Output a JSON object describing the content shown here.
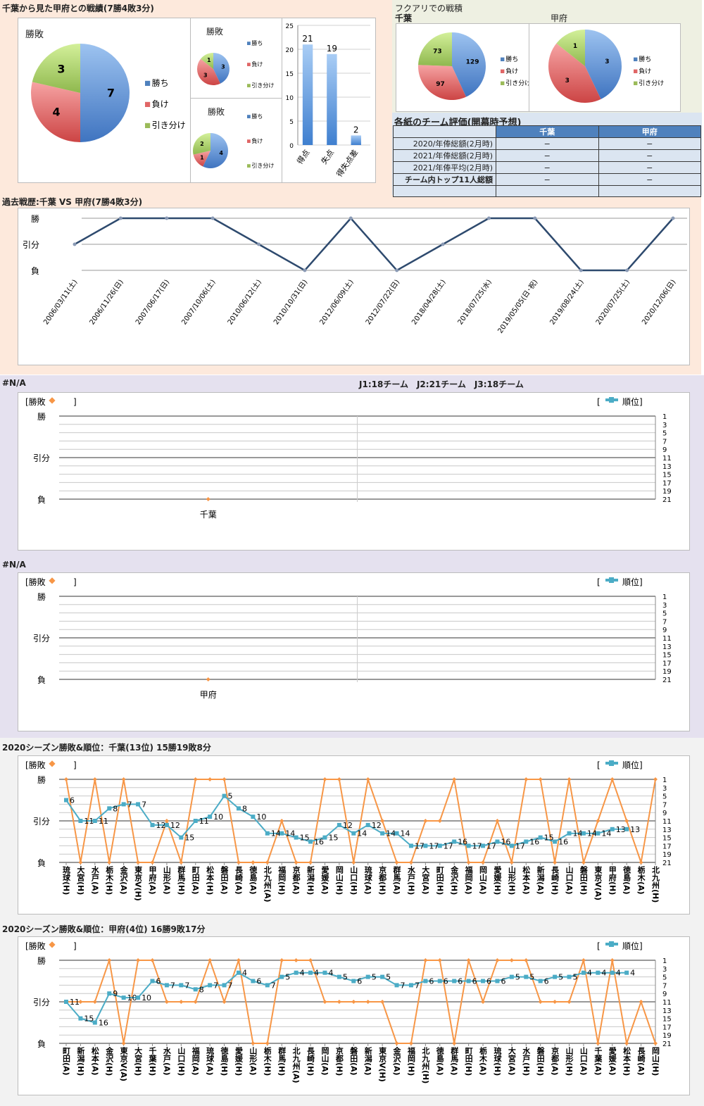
{
  "colors": {
    "win": "#4f81bd",
    "loss": "#e06666",
    "draw": "#9bbb59",
    "result_line": "#f79646",
    "rank_line": "#4bacc6",
    "history_line": "#2e4a6e"
  },
  "top": {
    "title": "千葉から見た甲府との戦績(7勝4敗3分)",
    "legend": {
      "win": "勝ち",
      "loss": "負け",
      "draw": "引き分け"
    },
    "main_pie": {
      "title": "勝敗",
      "values": [
        7,
        4,
        3
      ]
    },
    "pie_a": {
      "title": "勝敗",
      "values": [
        3,
        3,
        1
      ]
    },
    "pie_b": {
      "title": "勝敗",
      "values": [
        4,
        1,
        2
      ]
    },
    "bars": {
      "categories": [
        "得点",
        "失点",
        "得失点差"
      ],
      "values": [
        21,
        19,
        2
      ],
      "yticks": [
        "0",
        "5",
        "10",
        "15",
        "20",
        "25"
      ]
    }
  },
  "fukuari": {
    "title": "フクアリでの戦積",
    "chiba": {
      "label": "千葉",
      "values": [
        129,
        97,
        73
      ]
    },
    "kofu": {
      "label": "甲府",
      "values": [
        3,
        3,
        1
      ]
    },
    "legend": {
      "win": "勝ち",
      "loss": "負け",
      "draw": "引き分け"
    }
  },
  "eval_table": {
    "title": "各紙のチーム評価(開幕時予想)",
    "headers": [
      "千葉",
      "甲府"
    ],
    "rows": [
      {
        "label": "2020/年俸総額(2月時)",
        "chiba": "−",
        "kofu": "−"
      },
      {
        "label": "2021/年俸総額(2月時)",
        "chiba": "−",
        "kofu": "−"
      },
      {
        "label": "2021/年俸平均(2月時)",
        "chiba": "−",
        "kofu": "−"
      },
      {
        "label": "チーム内トップ11人総額",
        "chiba": "−",
        "kofu": "−"
      },
      {
        "label": "",
        "chiba": "",
        "kofu": ""
      }
    ]
  },
  "history": {
    "title": "過去戦歴:千葉 VS 甲府(7勝4敗3分)",
    "yticks": [
      "勝",
      "引分",
      "負"
    ],
    "chart_data": {
      "type": "line",
      "x": [
        "2006/03/11(土)",
        "2006/11/26(日)",
        "2007/06/17(日)",
        "2007/10/06(土)",
        "2010/06/12(土)",
        "2010/10/31(日)",
        "2012/06/09(土)",
        "2012/07/22(日)",
        "2018/04/28(土)",
        "2018/07/25(水)",
        "2019/05/05(日･祝)",
        "2019/08/24(土)",
        "2020/07/25(土)",
        "2020/12/06(日)"
      ],
      "values": [
        0.5,
        1,
        1,
        1,
        0.5,
        0,
        1,
        0,
        0.5,
        1,
        1,
        0,
        0,
        1
      ]
    }
  },
  "league_info": "J1:18チーム　J2:21チーム　J3:18チーム",
  "combo_legend": {
    "result": "[勝敗",
    "result_close": "]",
    "rank_open": "[",
    "rank": "順位]"
  },
  "result_ticks": [
    "勝",
    "引分",
    "負"
  ],
  "rank_ticks": [
    "1",
    "3",
    "5",
    "7",
    "9",
    "11",
    "13",
    "15",
    "17",
    "19",
    "21"
  ],
  "chart_data": [
    {
      "type": "line",
      "title": "#N/A",
      "categories": [
        "千葉",
        ""
      ],
      "result": [
        0,
        null
      ],
      "rank": [
        null,
        null
      ]
    },
    {
      "type": "line",
      "title": "#N/A",
      "categories": [
        "甲府",
        ""
      ],
      "result": [
        0,
        null
      ],
      "rank": [
        null,
        null
      ]
    },
    {
      "type": "line",
      "title": "2020シーズン勝敗&順位：千葉(13位) 15勝19敗8分",
      "categories": [
        "琉球(H)",
        "大宮(H)",
        "水戸(A)",
        "栃木(H)",
        "金沢(A)",
        "東京V(H)",
        "甲府(A)",
        "山形(A)",
        "群馬(H)",
        "町田(A)",
        "松本(H)",
        "磐田(A)",
        "長崎(A)",
        "徳島(A)",
        "北九州(A)",
        "福岡(H)",
        "京都(A)",
        "新潟(H)",
        "愛媛(A)",
        "岡山(H)",
        "山口(H)",
        "琉球(A)",
        "京都(H)",
        "群馬(A)",
        "水戸(H)",
        "大宮(A)",
        "町田(H)",
        "金沢(H)",
        "福岡(A)",
        "岡山(A)",
        "愛媛(H)",
        "山形(H)",
        "松本(A)",
        "新潟(A)",
        "長崎(H)",
        "山口(A)",
        "磐田(H)",
        "東京V(A)",
        "甲府(H)",
        "徳島(A)",
        "栃木(A)",
        "北九州(H)"
      ],
      "result": [
        1,
        0,
        1,
        0,
        1,
        0,
        0,
        0.5,
        0,
        1,
        1,
        1,
        0,
        0,
        0,
        0.5,
        0,
        0,
        1,
        1,
        0,
        1,
        0.5,
        0,
        0,
        0.5,
        0.5,
        1,
        0,
        0,
        0.5,
        0,
        1,
        1,
        0,
        1,
        0,
        0.5,
        1,
        0.5,
        0,
        1
      ],
      "rank": [
        6,
        11,
        11,
        8,
        7,
        7,
        12,
        12,
        15,
        11,
        10,
        5,
        8,
        10,
        14,
        14,
        15,
        16,
        15,
        12,
        14,
        12,
        14,
        14,
        17,
        17,
        17,
        16,
        17,
        17,
        16,
        17,
        16,
        15,
        16,
        14,
        14,
        14,
        13,
        13,
        null,
        null
      ]
    },
    {
      "type": "line",
      "title": "2020シーズン勝敗&順位：甲府(4位) 16勝9敗17分",
      "categories": [
        "町田(A)",
        "新潟(H)",
        "松本(A)",
        "金沢(H)",
        "東京V(A)",
        "大宮(H)",
        "千葉(H)",
        "水戸(A)",
        "山口(H)",
        "福岡(A)",
        "琉球(A)",
        "徳島(H)",
        "愛媛(H)",
        "山形(A)",
        "栃木(H)",
        "群馬(H)",
        "北九州(A)",
        "長崎(H)",
        "岡山(A)",
        "京都(H)",
        "磐田(A)",
        "新潟(A)",
        "東京V(H)",
        "金沢(A)",
        "福岡(H)",
        "北九州(H)",
        "徳島(A)",
        "群馬(A)",
        "町田(H)",
        "栃木(A)",
        "琉球(H)",
        "大宮(A)",
        "水戸(H)",
        "磐田(H)",
        "京都(A)",
        "山形(H)",
        "山口(A)",
        "千葉(A)",
        "愛媛(A)",
        "松本(H)",
        "長崎(A)",
        "岡山(H)"
      ],
      "result": [
        0.5,
        0.5,
        0.5,
        1,
        0,
        1,
        1,
        0.5,
        0.5,
        0.5,
        1,
        0.5,
        1,
        0,
        0,
        1,
        1,
        1,
        0.5,
        0.5,
        0.5,
        0.5,
        0.5,
        0,
        0,
        1,
        1,
        0,
        1,
        0.5,
        1,
        1,
        1,
        0.5,
        0.5,
        0.5,
        1,
        0,
        1,
        0,
        0.5,
        0
      ],
      "rank": [
        11,
        15,
        16,
        9,
        10,
        10,
        6,
        7,
        7,
        8,
        7,
        7,
        4,
        6,
        7,
        5,
        4,
        4,
        4,
        5,
        6,
        5,
        5,
        7,
        7,
        6,
        6,
        6,
        6,
        6,
        6,
        5,
        5,
        6,
        5,
        5,
        4,
        4,
        4,
        4,
        null,
        null
      ]
    }
  ]
}
